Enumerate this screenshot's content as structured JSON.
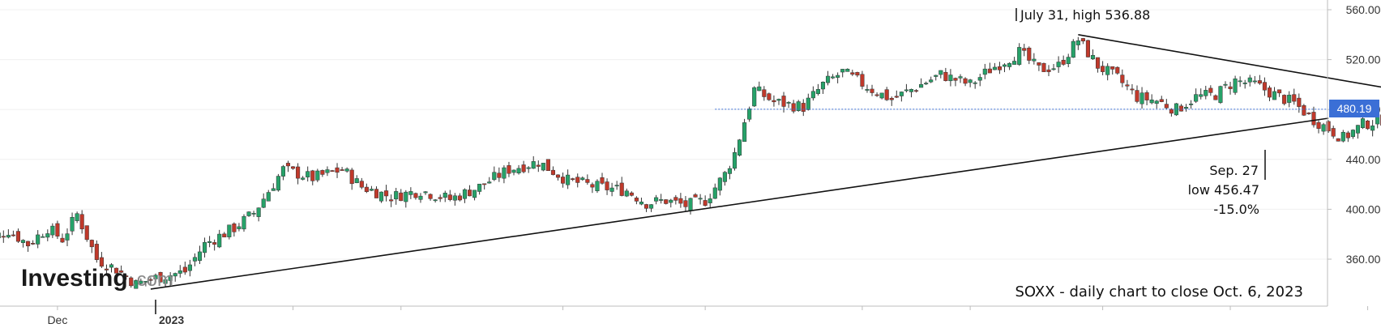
{
  "chart_data": {
    "type": "candlestick",
    "ylim": [
      320,
      560
    ],
    "y_ticks": [
      "560.00",
      "520.00",
      "480.00",
      "440.00",
      "400.00",
      "360.00"
    ],
    "y_tick_values": [
      560,
      520,
      480,
      440,
      400,
      360
    ],
    "x_tick_labels": [
      {
        "label": "Dec",
        "day_index": -20
      },
      {
        "label": "2023",
        "day_index": 0
      }
    ],
    "current_price": {
      "label": "480.19",
      "value": 480.19
    },
    "up_color": "#26a269",
    "down_color": "#c0392b",
    "price_line_color": "#3b6fd6",
    "candles_day_index_start": -36,
    "close_series_waypoints": [
      [
        -36,
        372
      ],
      [
        -30,
        383
      ],
      [
        -26,
        372
      ],
      [
        -22,
        385
      ],
      [
        -19,
        376
      ],
      [
        -16,
        396
      ],
      [
        -12,
        360
      ],
      [
        -8,
        352
      ],
      [
        -4,
        340
      ],
      [
        0,
        345
      ],
      [
        6,
        350
      ],
      [
        10,
        372
      ],
      [
        16,
        385
      ],
      [
        20,
        397
      ],
      [
        26,
        432
      ],
      [
        32,
        425
      ],
      [
        38,
        432
      ],
      [
        42,
        418
      ],
      [
        48,
        410
      ],
      [
        54,
        415
      ],
      [
        60,
        408
      ],
      [
        66,
        418
      ],
      [
        72,
        432
      ],
      [
        78,
        438
      ],
      [
        84,
        423
      ],
      [
        90,
        418
      ],
      [
        96,
        415
      ],
      [
        100,
        405
      ],
      [
        104,
        407
      ],
      [
        108,
        403
      ],
      [
        112,
        407
      ],
      [
        116,
        428
      ],
      [
        118,
        445
      ],
      [
        122,
        496
      ],
      [
        126,
        486
      ],
      [
        132,
        482
      ],
      [
        136,
        500
      ],
      [
        140,
        510
      ],
      [
        146,
        496
      ],
      [
        150,
        488
      ],
      [
        156,
        500
      ],
      [
        160,
        508
      ],
      [
        166,
        500
      ],
      [
        170,
        512
      ],
      [
        176,
        526
      ],
      [
        180,
        512
      ],
      [
        184,
        515
      ],
      [
        188,
        536
      ],
      [
        192,
        515
      ],
      [
        196,
        505
      ],
      [
        200,
        490
      ],
      [
        204,
        487
      ],
      [
        208,
        480
      ],
      [
        212,
        490
      ],
      [
        216,
        492
      ],
      [
        220,
        503
      ],
      [
        224,
        500
      ],
      [
        228,
        492
      ],
      [
        232,
        485
      ],
      [
        236,
        472
      ],
      [
        240,
        462
      ],
      [
        242,
        457
      ],
      [
        246,
        468
      ],
      [
        250,
        472
      ],
      [
        254,
        480
      ]
    ],
    "trendlines": [
      {
        "name": "rising support",
        "x1": -1,
        "y1": 336,
        "x2": 239,
        "y2": 473
      },
      {
        "name": "falling resistance",
        "x1": 188,
        "y1": 540,
        "x2": 260,
        "y2": 491
      }
    ],
    "annotations": {
      "high": {
        "text": "July 31, high 536.88",
        "day_index": 188,
        "value": 536.88
      },
      "low_date": "Sep. 27",
      "low_value": "low 456.47",
      "low_pct": "-15.0%",
      "low_day_index": 241
    },
    "caption": "SOXX - daily chart to close Oct. 6, 2023"
  },
  "logo": {
    "text": "Investing",
    "suffix": ".com"
  }
}
